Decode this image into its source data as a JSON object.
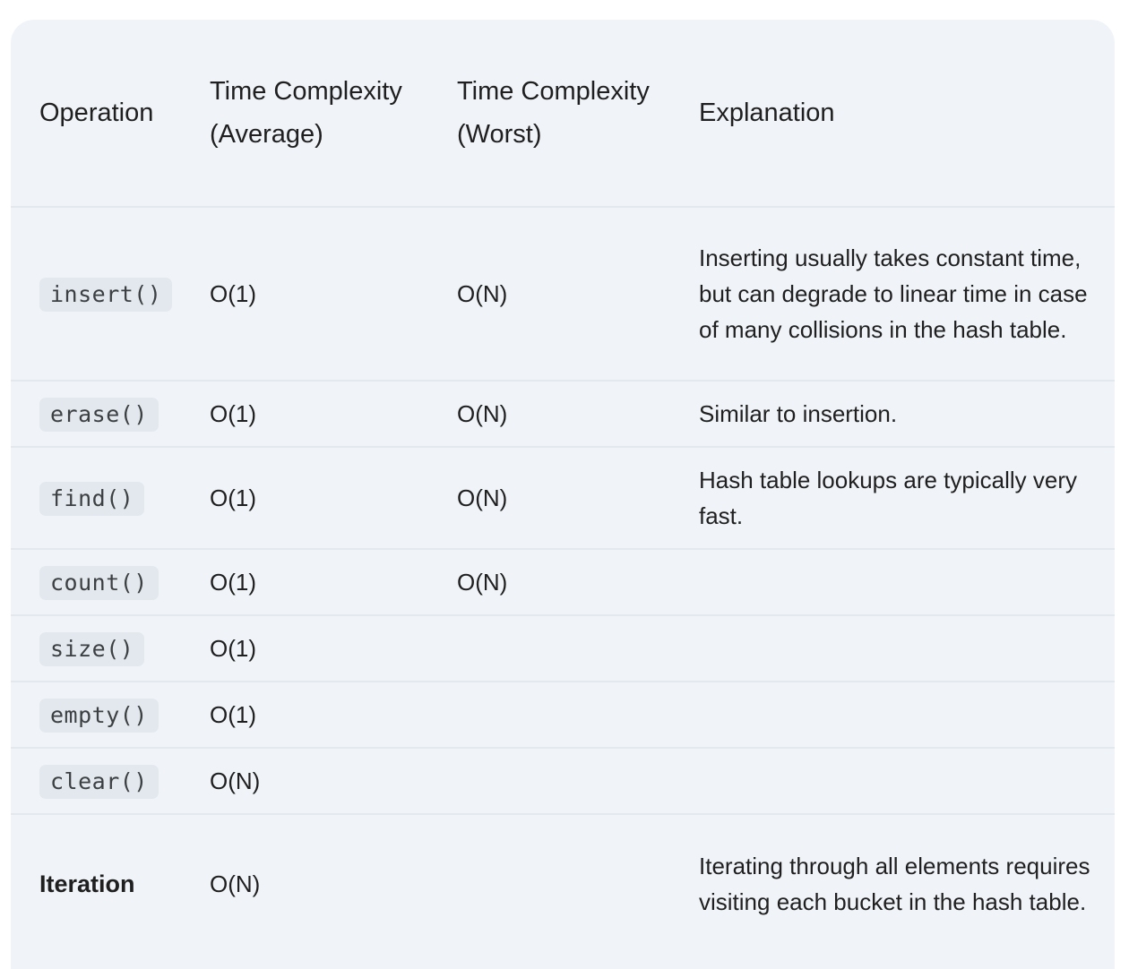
{
  "headers": {
    "operation": "Operation",
    "avg": "Time Complexity (Average)",
    "worst": "Time Complexity (Worst)",
    "explanation": "Explanation"
  },
  "rows": [
    {
      "op": "insert()",
      "avg": "O(1)",
      "worst": "O(N)",
      "explanation": "Inserting usually takes constant time, but can degrade to linear time in case of many collisions in the hash table."
    },
    {
      "op": "erase()",
      "avg": "O(1)",
      "worst": "O(N)",
      "explanation": "Similar to insertion."
    },
    {
      "op": "find()",
      "avg": "O(1)",
      "worst": "O(N)",
      "explanation": "Hash table lookups are typically very fast."
    },
    {
      "op": "count()",
      "avg": "O(1)",
      "worst": "O(N)",
      "explanation": ""
    },
    {
      "op": "size()",
      "avg": "O(1)",
      "worst": "",
      "explanation": ""
    },
    {
      "op": "empty()",
      "avg": "O(1)",
      "worst": "",
      "explanation": ""
    },
    {
      "op": "clear()",
      "avg": "O(N)",
      "worst": "",
      "explanation": ""
    },
    {
      "op": "Iteration",
      "avg": "O(N)",
      "worst": "",
      "explanation": "Iterating through all elements requires visiting each bucket in the hash table."
    }
  ]
}
